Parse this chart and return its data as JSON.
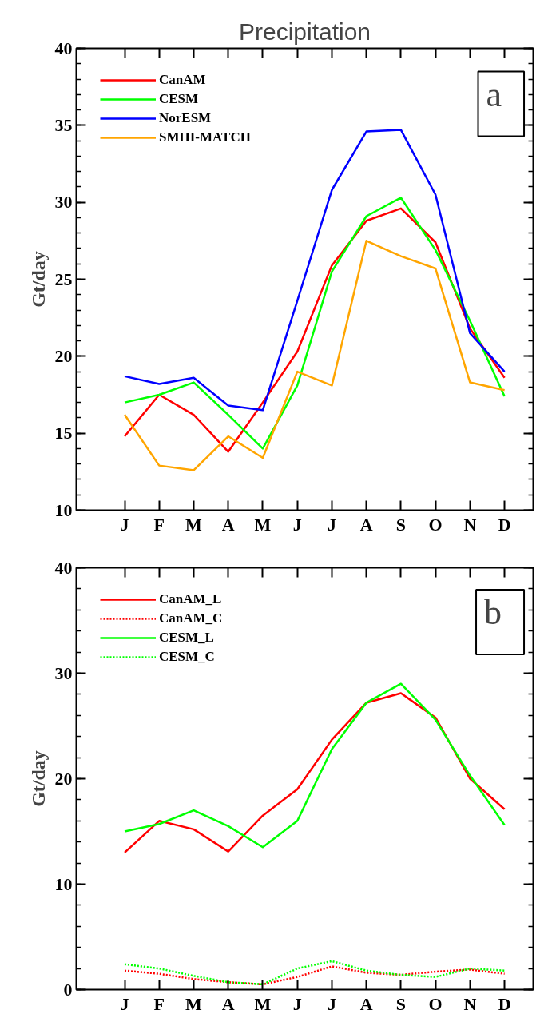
{
  "chart_data": [
    {
      "type": "line",
      "title": "Precipitation",
      "ylabel": "Gt/day",
      "categories": [
        "J",
        "F",
        "M",
        "A",
        "M",
        "J",
        "J",
        "A",
        "S",
        "O",
        "N",
        "D"
      ],
      "ylim": [
        10,
        40
      ],
      "yticks": [
        10,
        15,
        20,
        25,
        30,
        35,
        40
      ],
      "legend": "top left",
      "annotations": [
        "a"
      ],
      "series": [
        {
          "name": "CanAM",
          "color": "#ff0000",
          "values": [
            14.8,
            17.5,
            16.2,
            13.8,
            17.0,
            20.3,
            25.9,
            28.8,
            29.6,
            27.4,
            21.8,
            18.6
          ]
        },
        {
          "name": "CESM",
          "color": "#00ff00",
          "values": [
            17.0,
            17.5,
            18.3,
            16.2,
            14.0,
            18.1,
            25.5,
            29.1,
            30.3,
            26.9,
            22.3,
            17.4
          ]
        },
        {
          "name": "NorESM",
          "color": "#0000ff",
          "values": [
            18.7,
            18.2,
            18.6,
            16.8,
            16.5,
            23.6,
            30.8,
            34.6,
            34.7,
            30.5,
            21.5,
            19.0
          ]
        },
        {
          "name": "SMHI-MATCH",
          "color": "#ffa500",
          "values": [
            16.2,
            12.9,
            12.6,
            14.8,
            13.4,
            19.0,
            18.1,
            27.5,
            26.5,
            25.7,
            18.3,
            17.8
          ]
        }
      ]
    },
    {
      "type": "line",
      "ylabel": "Gt/day",
      "categories": [
        "J",
        "F",
        "M",
        "A",
        "M",
        "J",
        "J",
        "A",
        "S",
        "O",
        "N",
        "D"
      ],
      "ylim": [
        0,
        40
      ],
      "yticks": [
        0,
        10,
        20,
        30,
        40
      ],
      "legend": "top left",
      "annotations": [
        "b"
      ],
      "series": [
        {
          "name": "CanAM_L",
          "color": "#ff0000",
          "line_style": "solid",
          "values": [
            13.0,
            16.0,
            15.2,
            13.1,
            16.5,
            19.0,
            23.7,
            27.2,
            28.1,
            25.8,
            20.0,
            17.1
          ]
        },
        {
          "name": "CanAM_C",
          "color": "#ff0000",
          "line_style": "dotted",
          "values": [
            1.8,
            1.5,
            1.0,
            0.7,
            0.5,
            1.2,
            2.2,
            1.6,
            1.4,
            1.7,
            1.9,
            1.5
          ]
        },
        {
          "name": "CESM_L",
          "color": "#00ff00",
          "line_style": "solid",
          "values": [
            15.0,
            15.7,
            17.0,
            15.5,
            13.5,
            16.0,
            22.8,
            27.2,
            29.0,
            25.6,
            20.3,
            15.6
          ]
        },
        {
          "name": "CESM_C",
          "color": "#00ff00",
          "line_style": "dotted",
          "values": [
            2.4,
            2.0,
            1.3,
            0.7,
            0.5,
            2.0,
            2.7,
            1.8,
            1.4,
            1.2,
            2.0,
            1.8
          ]
        }
      ]
    }
  ]
}
